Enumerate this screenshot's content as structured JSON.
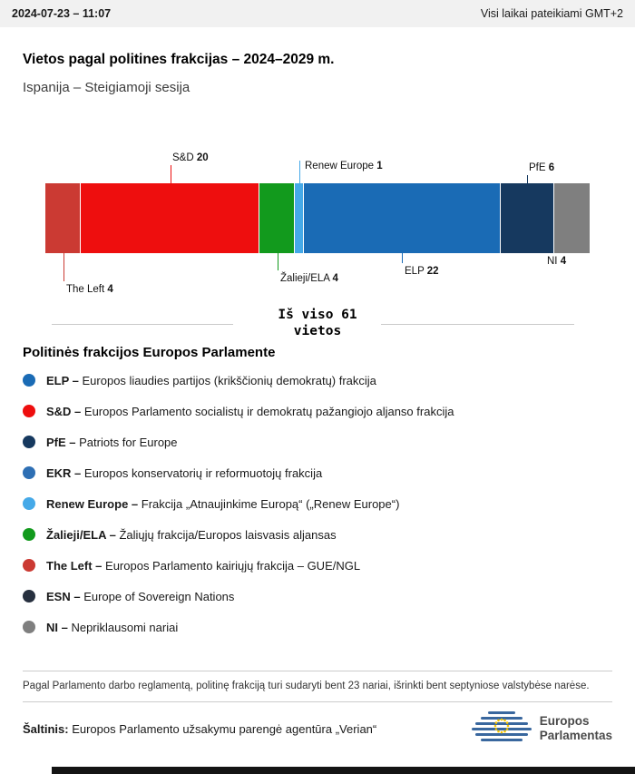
{
  "header": {
    "datetime": "2024-07-23 – 11:07",
    "timezone_note": "Visi laikai pateikiami GMT+2"
  },
  "title": "Vietos pagal politines frakcijas – 2024–2029 m.",
  "subtitle": "Ispanija – Steigiamoji sesija",
  "chart_data": {
    "type": "bar",
    "orientation": "horizontal-stacked",
    "total_seats": 61,
    "total_label_line1": "Iš viso 61",
    "total_label_line2": "vietos",
    "segments": [
      {
        "name": "The Left",
        "seats": 4,
        "color": "#cb3a33",
        "label_side": "below"
      },
      {
        "name": "S&D",
        "seats": 20,
        "color": "#ee0e0e",
        "label_side": "above"
      },
      {
        "name": "Žalieji/ELA",
        "seats": 4,
        "color": "#129a1d",
        "label_side": "below"
      },
      {
        "name": "Renew Europe",
        "seats": 1,
        "color": "#45a9e8",
        "label_side": "above"
      },
      {
        "name": "ELP",
        "seats": 22,
        "color": "#1a6bb5",
        "label_side": "below"
      },
      {
        "name": "PfE",
        "seats": 6,
        "color": "#16395f",
        "label_side": "above"
      },
      {
        "name": "NI",
        "seats": 4,
        "color": "#7f7f7f",
        "label_side": "below"
      }
    ]
  },
  "legend": {
    "heading": "Politinės frakcijos Europos Parlamente",
    "items": [
      {
        "abbr": "ELP –",
        "desc": "Europos liaudies partijos (krikščionių demokratų) frakcija",
        "color": "#1a6bb5"
      },
      {
        "abbr": "S&D –",
        "desc": "Europos Parlamento socialistų ir demokratų pažangiojo aljanso frakcija",
        "color": "#ee0e0e"
      },
      {
        "abbr": "PfE –",
        "desc": "Patriots for Europe",
        "color": "#16395f"
      },
      {
        "abbr": "EKR –",
        "desc": "Europos konservatorių ir reformuotojų frakcija",
        "color": "#2e6fb4"
      },
      {
        "abbr": "Renew Europe –",
        "desc": "Frakcija „Atnaujinkime Europą“ („Renew Europe“)",
        "color": "#45a9e8"
      },
      {
        "abbr": "Žalieji/ELA –",
        "desc": "Žaliųjų frakcija/Europos laisvasis aljansas",
        "color": "#129a1d"
      },
      {
        "abbr": "The Left –",
        "desc": "Europos Parlamento kairiųjų frakcija – GUE/NGL",
        "color": "#cb3a33"
      },
      {
        "abbr": "ESN –",
        "desc": "Europe of Sovereign Nations",
        "color": "#27303f"
      },
      {
        "abbr": "NI –",
        "desc": "Nepriklausomi nariai",
        "color": "#7f7f7f"
      }
    ]
  },
  "footnote": "Pagal Parlamento darbo reglamentą, politinę frakciją turi sudaryti bent 23 nariai, išrinkti bent septyniose valstybėse narėse.",
  "source": {
    "label": "Šaltinis:",
    "text": "Europos Parlamento užsakymu parengė agentūra „Verian“"
  },
  "logo": {
    "line1": "Europos",
    "line2": "Parlamentas"
  }
}
